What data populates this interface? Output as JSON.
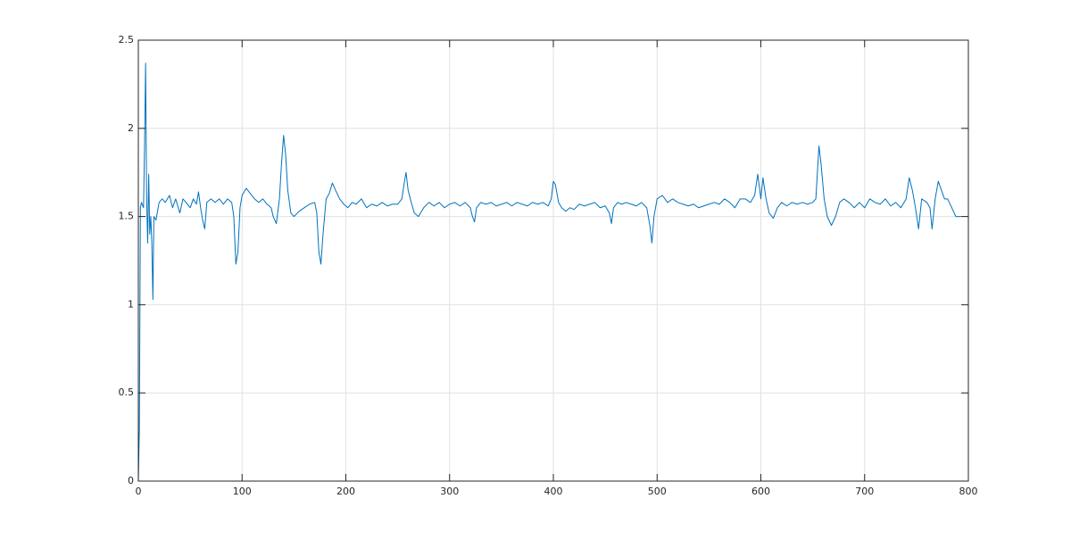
{
  "chart_data": {
    "type": "line",
    "x": [
      0,
      1,
      2,
      3,
      5,
      6,
      7,
      8,
      9,
      10,
      11,
      12,
      13,
      14,
      15,
      17,
      20,
      23,
      26,
      30,
      33,
      36,
      40,
      43,
      46,
      50,
      53,
      56,
      58,
      60,
      62,
      64,
      66,
      70,
      74,
      78,
      82,
      86,
      90,
      92,
      94,
      96,
      98,
      100,
      104,
      108,
      112,
      116,
      120,
      124,
      128,
      130,
      133,
      136,
      138,
      140,
      142,
      144,
      147,
      150,
      155,
      160,
      165,
      170,
      172,
      174,
      176,
      178,
      181,
      184,
      187,
      190,
      194,
      198,
      202,
      206,
      210,
      215,
      220,
      225,
      230,
      235,
      240,
      245,
      250,
      254,
      256,
      258,
      260,
      263,
      266,
      270,
      275,
      280,
      285,
      290,
      295,
      300,
      305,
      310,
      315,
      320,
      322,
      324,
      326,
      330,
      335,
      340,
      345,
      350,
      355,
      360,
      365,
      370,
      375,
      380,
      385,
      390,
      395,
      398,
      400,
      402,
      405,
      408,
      412,
      416,
      420,
      425,
      430,
      435,
      440,
      445,
      450,
      454,
      456,
      458,
      462,
      466,
      470,
      475,
      480,
      485,
      490,
      493,
      495,
      497,
      500,
      505,
      510,
      515,
      520,
      525,
      530,
      535,
      540,
      545,
      550,
      555,
      560,
      565,
      570,
      575,
      580,
      585,
      590,
      594,
      597,
      600,
      602,
      605,
      608,
      612,
      616,
      620,
      625,
      630,
      635,
      640,
      645,
      650,
      653,
      656,
      658,
      661,
      664,
      668,
      672,
      676,
      680,
      685,
      690,
      695,
      700,
      705,
      710,
      715,
      720,
      725,
      730,
      735,
      740,
      743,
      746,
      749,
      752,
      755,
      760,
      763,
      765,
      768,
      771,
      774,
      777,
      780,
      784,
      788,
      790,
      793
    ],
    "series": [
      {
        "color": "#0072bd",
        "values": [
          0,
          0.3,
          1.55,
          1.58,
          1.55,
          1.9,
          2.37,
          1.6,
          1.35,
          1.74,
          1.4,
          1.5,
          1.35,
          1.03,
          1.5,
          1.48,
          1.58,
          1.6,
          1.58,
          1.62,
          1.55,
          1.6,
          1.52,
          1.6,
          1.58,
          1.55,
          1.6,
          1.57,
          1.64,
          1.55,
          1.48,
          1.43,
          1.58,
          1.6,
          1.58,
          1.6,
          1.57,
          1.6,
          1.58,
          1.5,
          1.23,
          1.3,
          1.55,
          1.62,
          1.66,
          1.63,
          1.6,
          1.58,
          1.6,
          1.57,
          1.55,
          1.5,
          1.46,
          1.6,
          1.8,
          1.96,
          1.85,
          1.65,
          1.52,
          1.5,
          1.53,
          1.55,
          1.57,
          1.58,
          1.52,
          1.3,
          1.23,
          1.4,
          1.6,
          1.63,
          1.69,
          1.65,
          1.6,
          1.57,
          1.55,
          1.58,
          1.57,
          1.6,
          1.55,
          1.57,
          1.56,
          1.58,
          1.56,
          1.57,
          1.57,
          1.6,
          1.68,
          1.75,
          1.65,
          1.58,
          1.52,
          1.5,
          1.55,
          1.58,
          1.56,
          1.58,
          1.55,
          1.57,
          1.58,
          1.56,
          1.58,
          1.55,
          1.5,
          1.47,
          1.55,
          1.58,
          1.57,
          1.58,
          1.56,
          1.57,
          1.58,
          1.56,
          1.58,
          1.57,
          1.56,
          1.58,
          1.57,
          1.58,
          1.56,
          1.6,
          1.7,
          1.68,
          1.58,
          1.55,
          1.53,
          1.55,
          1.54,
          1.57,
          1.56,
          1.57,
          1.58,
          1.55,
          1.56,
          1.52,
          1.46,
          1.55,
          1.58,
          1.57,
          1.58,
          1.57,
          1.56,
          1.58,
          1.55,
          1.45,
          1.35,
          1.5,
          1.6,
          1.62,
          1.58,
          1.6,
          1.58,
          1.57,
          1.56,
          1.57,
          1.55,
          1.56,
          1.57,
          1.58,
          1.57,
          1.6,
          1.58,
          1.55,
          1.6,
          1.6,
          1.58,
          1.62,
          1.74,
          1.6,
          1.72,
          1.6,
          1.52,
          1.49,
          1.55,
          1.58,
          1.56,
          1.58,
          1.57,
          1.58,
          1.57,
          1.58,
          1.6,
          1.9,
          1.8,
          1.6,
          1.5,
          1.45,
          1.5,
          1.58,
          1.6,
          1.58,
          1.55,
          1.58,
          1.55,
          1.6,
          1.58,
          1.57,
          1.6,
          1.56,
          1.58,
          1.55,
          1.6,
          1.72,
          1.65,
          1.55,
          1.43,
          1.6,
          1.58,
          1.55,
          1.43,
          1.6,
          1.7,
          1.65,
          1.6,
          1.6,
          1.55,
          1.5,
          1.5,
          1.5
        ]
      }
    ],
    "xlim": [
      0,
      800
    ],
    "xticks": [
      0,
      100,
      200,
      300,
      400,
      500,
      600,
      700,
      800
    ],
    "ylim": [
      0,
      2.5
    ],
    "yticks": [
      0,
      0.5,
      1,
      1.5,
      2,
      2.5
    ],
    "grid": true
  }
}
